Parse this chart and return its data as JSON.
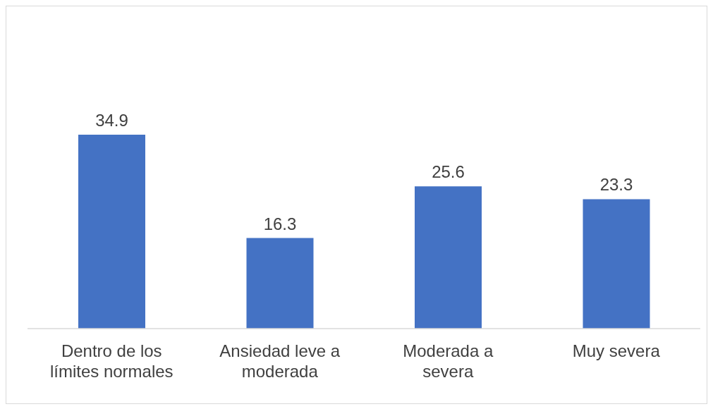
{
  "chart_data": {
    "type": "bar",
    "categories": [
      "Dentro de los límites normales",
      "Ansiedad leve a moderada",
      "Moderada a severa",
      "Muy severa"
    ],
    "values": [
      34.9,
      16.3,
      25.6,
      23.3
    ],
    "color": "#4472c4",
    "data_labels": true,
    "grid": false,
    "legend": false
  }
}
